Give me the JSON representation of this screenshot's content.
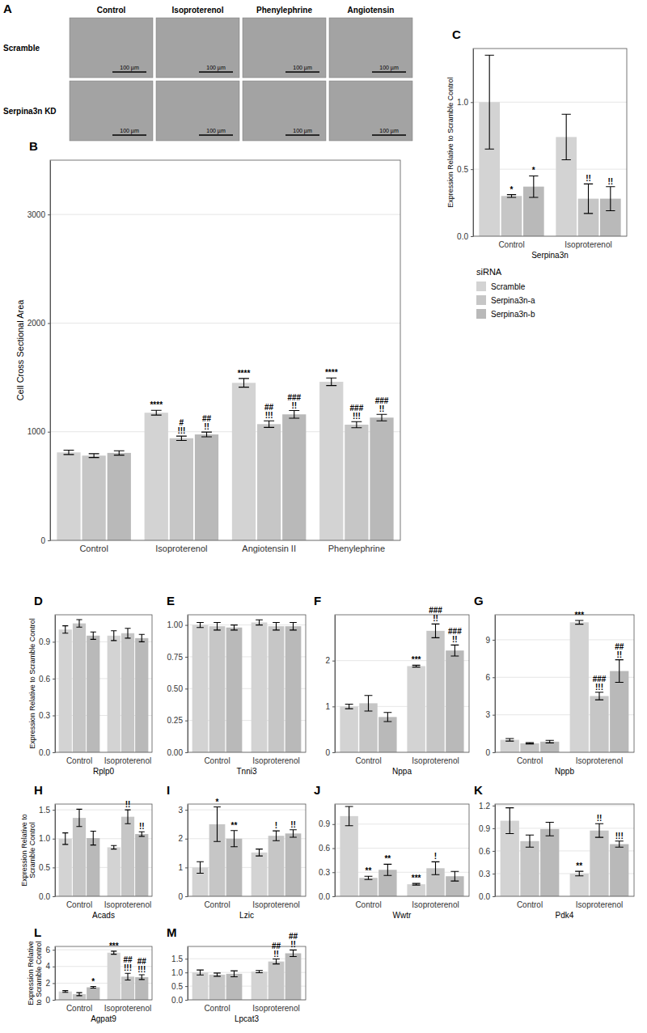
{
  "micrographs": {
    "letter": "A",
    "columns": [
      "Control",
      "Isoproterenol",
      "Phenylephrine",
      "Angiotensin"
    ],
    "rows": [
      "Scramble",
      "Serpina3n KD"
    ],
    "scale_bar": "100 µm"
  },
  "chart_data": [
    {
      "panel": "B",
      "type": "bar",
      "ylabel": "Cell Cross Sectional Area",
      "categories": [
        "Control",
        "Isoproterenol",
        "Angiotensin II",
        "Phenylephrine"
      ],
      "series": [
        {
          "color": "#d3d3d3",
          "values": [
            810,
            1175,
            1450,
            1460
          ],
          "errors": [
            20,
            22,
            40,
            35
          ],
          "significance": [
            null,
            [
              "****"
            ],
            [
              "****"
            ],
            [
              "****"
            ]
          ]
        },
        {
          "color": "#c6c6c6",
          "values": [
            780,
            940,
            1070,
            1065
          ],
          "errors": [
            18,
            20,
            30,
            28
          ],
          "significance": [
            null,
            [
              "#",
              "!!!"
            ],
            [
              "##",
              "!!!"
            ],
            [
              "###",
              "!!!"
            ]
          ]
        },
        {
          "color": "#b9b9b9",
          "values": [
            805,
            975,
            1160,
            1130
          ],
          "errors": [
            20,
            22,
            35,
            30
          ],
          "significance": [
            null,
            [
              "##",
              "!!"
            ],
            [
              "###",
              "!!"
            ],
            [
              "###",
              "!!"
            ]
          ]
        }
      ],
      "ylim": [
        0,
        3500
      ],
      "yticks": [
        0,
        1000,
        2000,
        3000
      ],
      "grid": true
    },
    {
      "panel": "C",
      "type": "bar",
      "xlabel": "Serpina3n",
      "ylabel": "Expression Relative to Scramble Control",
      "categories": [
        "Control",
        "Isoproterenol"
      ],
      "series": [
        {
          "name": "Scramble",
          "color": "#d3d3d3",
          "values": [
            1.0,
            0.74
          ],
          "errors": [
            0.35,
            0.17
          ],
          "significance": [
            null,
            null
          ]
        },
        {
          "name": "Serpina3n-a",
          "color": "#c6c6c6",
          "values": [
            0.3,
            0.28
          ],
          "errors": [
            0.01,
            0.11
          ],
          "significance": [
            [
              "*"
            ],
            [
              "!!"
            ]
          ]
        },
        {
          "name": "Serpina3n-b",
          "color": "#b9b9b9",
          "values": [
            0.37,
            0.28
          ],
          "errors": [
            0.08,
            0.09
          ],
          "significance": [
            [
              "*"
            ],
            [
              "!!"
            ]
          ]
        }
      ],
      "ylim": [
        0,
        1.4
      ],
      "yticks": [
        {
          "value": 0,
          "label": "0.0"
        },
        {
          "value": 0.5,
          "label": "0.5"
        },
        {
          "value": 1,
          "label": "1.0"
        }
      ],
      "grid": true,
      "legend": "bottom",
      "legend_title": "siRNA"
    },
    {
      "panel": "D",
      "type": "bar",
      "xlabel": "Rplp0",
      "ylabel": "Expression Relative to Scramble Control",
      "categories": [
        "Control",
        "Isoproterenol"
      ],
      "series": [
        {
          "color": "#d3d3d3",
          "values": [
            1.0,
            0.95
          ],
          "errors": [
            0.03,
            0.04
          ]
        },
        {
          "color": "#c6c6c6",
          "values": [
            1.05,
            0.97
          ],
          "errors": [
            0.03,
            0.04
          ]
        },
        {
          "color": "#b9b9b9",
          "values": [
            0.95,
            0.93
          ],
          "errors": [
            0.03,
            0.03
          ]
        }
      ],
      "ylim": [
        0,
        1.12
      ],
      "yticks": [
        {
          "value": 0,
          "label": "0.0"
        },
        {
          "value": 0.3,
          "label": "0.3"
        },
        {
          "value": 0.6,
          "label": "0.6"
        },
        {
          "value": 0.9,
          "label": "0.9"
        }
      ],
      "grid": true
    },
    {
      "panel": "E",
      "type": "bar",
      "xlabel": "Tnni3",
      "categories": [
        "Control",
        "Isoproterenol"
      ],
      "series": [
        {
          "color": "#d3d3d3",
          "values": [
            1.0,
            1.02
          ],
          "errors": [
            0.02,
            0.02
          ]
        },
        {
          "color": "#c6c6c6",
          "values": [
            0.99,
            0.99
          ],
          "errors": [
            0.03,
            0.03
          ]
        },
        {
          "color": "#b9b9b9",
          "values": [
            0.98,
            0.99
          ],
          "errors": [
            0.02,
            0.03
          ]
        }
      ],
      "ylim": [
        0,
        1.08
      ],
      "yticks": [
        {
          "value": 0,
          "label": "0.00"
        },
        {
          "value": 0.25,
          "label": "0.25"
        },
        {
          "value": 0.5,
          "label": "0.50"
        },
        {
          "value": 0.75,
          "label": "0.75"
        },
        {
          "value": 1,
          "label": "1.00"
        }
      ],
      "grid": true
    },
    {
      "panel": "F",
      "type": "bar",
      "xlabel": "Nppa",
      "categories": [
        "Control",
        "Isoproterenol"
      ],
      "series": [
        {
          "color": "#d3d3d3",
          "values": [
            1.0,
            1.88
          ],
          "errors": [
            0.05,
            0.02
          ],
          "significance": [
            null,
            [
              "***"
            ]
          ]
        },
        {
          "color": "#c6c6c6",
          "values": [
            1.07,
            2.65
          ],
          "errors": [
            0.17,
            0.15
          ],
          "significance": [
            null,
            [
              "###",
              "!!"
            ]
          ]
        },
        {
          "color": "#b9b9b9",
          "values": [
            0.77,
            2.22
          ],
          "errors": [
            0.1,
            0.12
          ],
          "significance": [
            null,
            [
              "###",
              "!!"
            ]
          ]
        }
      ],
      "ylim": [
        0,
        3.0
      ],
      "yticks": [
        0,
        1,
        2
      ],
      "grid": true
    },
    {
      "panel": "G",
      "type": "bar",
      "xlabel": "Nppb",
      "categories": [
        "Control",
        "Isoproterenol"
      ],
      "series": [
        {
          "color": "#d3d3d3",
          "values": [
            1.0,
            10.4
          ],
          "errors": [
            0.1,
            0.15
          ],
          "significance": [
            null,
            [
              "***"
            ]
          ]
        },
        {
          "color": "#c6c6c6",
          "values": [
            0.72,
            4.5
          ],
          "errors": [
            0.05,
            0.3
          ],
          "significance": [
            null,
            [
              "###",
              "!!!"
            ]
          ]
        },
        {
          "color": "#b9b9b9",
          "values": [
            0.85,
            6.5
          ],
          "errors": [
            0.1,
            0.9
          ],
          "significance": [
            null,
            [
              "##",
              "!!"
            ]
          ]
        }
      ],
      "ylim": [
        0,
        11
      ],
      "yticks": [
        0,
        3,
        6,
        9
      ],
      "grid": true
    },
    {
      "panel": "H",
      "type": "bar",
      "xlabel": "Acads",
      "ylabel": "Expression Relative to Scramble Control",
      "categories": [
        "Control",
        "Isoproterenol"
      ],
      "series": [
        {
          "color": "#d3d3d3",
          "values": [
            1.0,
            0.85
          ],
          "errors": [
            0.1,
            0.03
          ],
          "significance": [
            null,
            null
          ]
        },
        {
          "color": "#c6c6c6",
          "values": [
            1.36,
            1.38
          ],
          "errors": [
            0.15,
            0.12
          ],
          "significance": [
            null,
            [
              "!!"
            ]
          ]
        },
        {
          "color": "#b9b9b9",
          "values": [
            1.01,
            1.08
          ],
          "errors": [
            0.12,
            0.04
          ],
          "significance": [
            null,
            [
              "!!"
            ]
          ]
        }
      ],
      "ylim": [
        0,
        1.6
      ],
      "yticks": [
        {
          "value": 0,
          "label": "0.0"
        },
        {
          "value": 0.5,
          "label": "0.5"
        },
        {
          "value": 1,
          "label": "1.0"
        },
        {
          "value": 1.5,
          "label": "1.5"
        }
      ],
      "grid": true
    },
    {
      "panel": "I",
      "type": "bar",
      "xlabel": "Lzic",
      "categories": [
        "Control",
        "Isoproterenol"
      ],
      "series": [
        {
          "color": "#d3d3d3",
          "values": [
            1.0,
            1.52
          ],
          "errors": [
            0.2,
            0.12
          ],
          "significance": [
            null,
            null
          ]
        },
        {
          "color": "#c6c6c6",
          "values": [
            2.5,
            2.1
          ],
          "errors": [
            0.6,
            0.17
          ],
          "significance": [
            [
              "*"
            ],
            [
              "!"
            ]
          ]
        },
        {
          "color": "#b9b9b9",
          "values": [
            2.0,
            2.18
          ],
          "errors": [
            0.28,
            0.13
          ],
          "significance": [
            [
              "**"
            ],
            [
              "!!"
            ]
          ]
        }
      ],
      "ylim": [
        0,
        3.2
      ],
      "yticks": [
        0,
        1,
        2,
        3
      ],
      "grid": true
    },
    {
      "panel": "J",
      "type": "bar",
      "xlabel": "Wwtr",
      "categories": [
        "Control",
        "Isoproterenol"
      ],
      "series": [
        {
          "color": "#d3d3d3",
          "values": [
            1.0,
            0.15
          ],
          "errors": [
            0.12,
            0.01
          ],
          "significance": [
            null,
            [
              "***"
            ]
          ]
        },
        {
          "color": "#c6c6c6",
          "values": [
            0.23,
            0.35
          ],
          "errors": [
            0.02,
            0.08
          ],
          "significance": [
            [
              "**"
            ],
            [
              "!"
            ]
          ]
        },
        {
          "color": "#b9b9b9",
          "values": [
            0.33,
            0.25
          ],
          "errors": [
            0.07,
            0.06
          ],
          "significance": [
            [
              "**"
            ],
            null
          ]
        }
      ],
      "ylim": [
        0,
        1.15
      ],
      "yticks": [
        {
          "value": 0,
          "label": "0.0"
        },
        {
          "value": 0.3,
          "label": "0.3"
        },
        {
          "value": 0.6,
          "label": "0.6"
        },
        {
          "value": 0.9,
          "label": "0.9"
        }
      ],
      "grid": true
    },
    {
      "panel": "K",
      "type": "bar",
      "xlabel": "Pdk4",
      "categories": [
        "Control",
        "Isoproterenol"
      ],
      "series": [
        {
          "color": "#d3d3d3",
          "values": [
            1.0,
            0.3
          ],
          "errors": [
            0.17,
            0.03
          ],
          "significance": [
            null,
            [
              "**"
            ]
          ]
        },
        {
          "color": "#c6c6c6",
          "values": [
            0.73,
            0.87
          ],
          "errors": [
            0.08,
            0.09
          ],
          "significance": [
            null,
            [
              "!!"
            ]
          ]
        },
        {
          "color": "#b9b9b9",
          "values": [
            0.89,
            0.69
          ],
          "errors": [
            0.09,
            0.04
          ],
          "significance": [
            null,
            [
              "!!!"
            ]
          ]
        }
      ],
      "ylim": [
        0,
        1.22
      ],
      "yticks": [
        {
          "value": 0,
          "label": "0.0"
        },
        {
          "value": 0.3,
          "label": "0.3"
        },
        {
          "value": 0.6,
          "label": "0.6"
        },
        {
          "value": 0.9,
          "label": "0.9"
        },
        {
          "value": 1.2,
          "label": "1.2"
        }
      ],
      "grid": true
    },
    {
      "panel": "L",
      "type": "bar",
      "xlabel": "Agpat9",
      "ylabel": "Expression Relative to Scramble Control",
      "categories": [
        "Control",
        "Isoproterenol"
      ],
      "series": [
        {
          "color": "#d3d3d3",
          "values": [
            1.0,
            5.65
          ],
          "errors": [
            0.1,
            0.18
          ],
          "significance": [
            null,
            [
              "***"
            ]
          ]
        },
        {
          "color": "#c6c6c6",
          "values": [
            0.68,
            2.78
          ],
          "errors": [
            0.18,
            0.4
          ],
          "significance": [
            null,
            [
              "##",
              "!!!"
            ]
          ]
        },
        {
          "color": "#b9b9b9",
          "values": [
            1.5,
            2.72
          ],
          "errors": [
            0.1,
            0.28
          ],
          "significance": [
            [
              "*"
            ],
            [
              "##",
              "!!!"
            ]
          ]
        }
      ],
      "ylim": [
        0,
        6.4
      ],
      "yticks": [
        0,
        2,
        4,
        6
      ],
      "grid": true
    },
    {
      "panel": "M",
      "type": "bar",
      "xlabel": "Lpcat3",
      "categories": [
        "Control",
        "Isoproterenol"
      ],
      "series": [
        {
          "color": "#d3d3d3",
          "values": [
            1.0,
            1.03
          ],
          "errors": [
            0.09,
            0.04
          ],
          "significance": [
            null,
            null
          ]
        },
        {
          "color": "#c6c6c6",
          "values": [
            0.92,
            1.4
          ],
          "errors": [
            0.06,
            0.09
          ],
          "significance": [
            null,
            [
              "##",
              "!!"
            ]
          ]
        },
        {
          "color": "#b9b9b9",
          "values": [
            0.95,
            1.7
          ],
          "errors": [
            0.11,
            0.12
          ],
          "significance": [
            null,
            [
              "##",
              "!!"
            ]
          ]
        }
      ],
      "ylim": [
        0,
        1.95
      ],
      "yticks": [
        {
          "value": 0,
          "label": "0.0"
        },
        {
          "value": 0.5,
          "label": "0.5"
        },
        {
          "value": 1,
          "label": "1.0"
        },
        {
          "value": 1.5,
          "label": "1.5"
        }
      ],
      "grid": true
    }
  ]
}
